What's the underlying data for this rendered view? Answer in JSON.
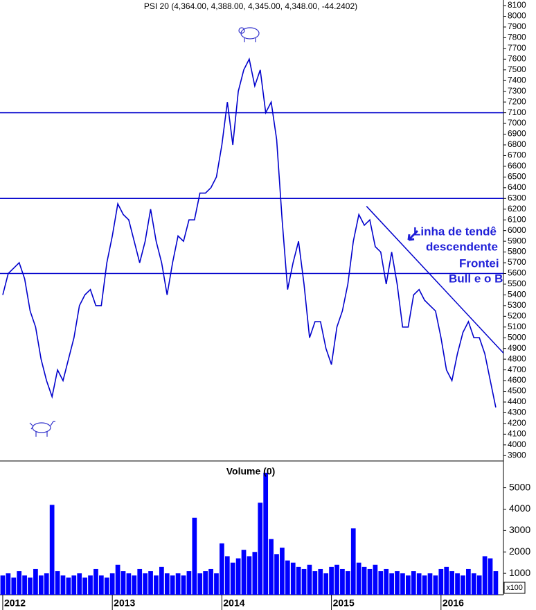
{
  "chart_data": [
    {
      "type": "line",
      "title": "PSI 20 (4,364.00, 4,388.00, 4,345.00, 4,348.00, -44.2402)",
      "color": "#0000cc",
      "x": [
        2012.0,
        2012.05,
        2012.1,
        2012.15,
        2012.2,
        2012.25,
        2012.3,
        2012.35,
        2012.4,
        2012.45,
        2012.5,
        2012.55,
        2012.6,
        2012.65,
        2012.7,
        2012.75,
        2012.8,
        2012.85,
        2012.9,
        2012.95,
        2013.0,
        2013.05,
        2013.1,
        2013.15,
        2013.2,
        2013.25,
        2013.3,
        2013.35,
        2013.4,
        2013.45,
        2013.5,
        2013.55,
        2013.6,
        2013.65,
        2013.7,
        2013.75,
        2013.8,
        2013.85,
        2013.9,
        2013.95,
        2014.0,
        2014.05,
        2014.1,
        2014.15,
        2014.2,
        2014.25,
        2014.3,
        2014.35,
        2014.4,
        2014.45,
        2014.5,
        2014.55,
        2014.6,
        2014.65,
        2014.7,
        2014.75,
        2014.8,
        2014.85,
        2014.9,
        2014.95,
        2015.0,
        2015.05,
        2015.1,
        2015.15,
        2015.2,
        2015.25,
        2015.3,
        2015.35,
        2015.4,
        2015.45,
        2015.5,
        2015.55,
        2015.6,
        2015.65,
        2015.7,
        2015.75,
        2015.8,
        2015.85,
        2015.9,
        2015.95,
        2016.0,
        2016.05,
        2016.1,
        2016.15,
        2016.2,
        2016.25,
        2016.3,
        2016.35,
        2016.4,
        2016.45,
        2016.5
      ],
      "values": [
        5400,
        5600,
        5650,
        5700,
        5550,
        5250,
        5100,
        4800,
        4600,
        4450,
        4700,
        4600,
        4800,
        5000,
        5300,
        5400,
        5450,
        5300,
        5300,
        5700,
        5950,
        6250,
        6150,
        6100,
        5900,
        5700,
        5900,
        6200,
        5900,
        5700,
        5400,
        5700,
        5950,
        5900,
        6100,
        6100,
        6350,
        6350,
        6400,
        6500,
        6800,
        7200,
        6800,
        7300,
        7500,
        7600,
        7350,
        7500,
        7100,
        7200,
        6850,
        6100,
        5450,
        5700,
        5900,
        5500,
        5000,
        5150,
        5150,
        4900,
        4750,
        5100,
        5250,
        5500,
        5900,
        6150,
        6050,
        6100,
        5850,
        5800,
        5500,
        5800,
        5500,
        5100,
        5100,
        5400,
        5450,
        5350,
        5300,
        5250,
        5000,
        4700,
        4600,
        4850,
        5050,
        5150,
        5000,
        5000,
        4850,
        4600,
        4350
      ],
      "xlim": [
        2011.975,
        2016.57
      ],
      "xticks": [
        2012,
        2013,
        2014,
        2015,
        2016
      ],
      "ylim": [
        3850,
        8152
      ],
      "yticks": [
        3900,
        4000,
        4100,
        4200,
        4300,
        4400,
        4500,
        4600,
        4700,
        4800,
        4900,
        5000,
        5100,
        5200,
        5300,
        5400,
        5500,
        5600,
        5700,
        5800,
        5900,
        6000,
        6100,
        6200,
        6300,
        6400,
        6500,
        6600,
        6700,
        6800,
        6900,
        7000,
        7100,
        7200,
        7300,
        7400,
        7500,
        7600,
        7700,
        7800,
        7900,
        8000,
        8100
      ],
      "hlines": [
        7100,
        6300,
        5600
      ],
      "trendline": {
        "x": [
          2015.32,
          2016.57
        ],
        "y": [
          6227,
          4857
        ]
      },
      "annotations": [
        "Linha de tendê",
        "descendente",
        "Frontei",
        "Bull e o B"
      ]
    },
    {
      "type": "bar",
      "title": "Volume (0)",
      "color": "#0000ff",
      "unit_label": "x100",
      "values": [
        900,
        1000,
        800,
        1100,
        900,
        800,
        1200,
        900,
        1000,
        4200,
        1100,
        900,
        800,
        900,
        1000,
        800,
        900,
        1200,
        900,
        800,
        1000,
        1400,
        1100,
        1000,
        900,
        1200,
        1000,
        1100,
        900,
        1300,
        1000,
        900,
        1000,
        900,
        1100,
        3600,
        1000,
        1100,
        1200,
        1000,
        2400,
        1800,
        1500,
        1700,
        2100,
        1800,
        2000,
        4300,
        5700,
        2600,
        1900,
        2200,
        1600,
        1500,
        1300,
        1200,
        1400,
        1100,
        1200,
        1000,
        1300,
        1400,
        1200,
        1100,
        3100,
        1500,
        1300,
        1200,
        1400,
        1100,
        1200,
        1000,
        1100,
        1000,
        900,
        1100,
        1000,
        900,
        1000,
        900,
        1200,
        1300,
        1100,
        1000,
        900,
        1200,
        1000,
        900,
        1800,
        1700,
        1100
      ],
      "ylim": [
        0,
        6250
      ],
      "yticks": [
        1000,
        2000,
        3000,
        4000,
        5000
      ]
    }
  ]
}
